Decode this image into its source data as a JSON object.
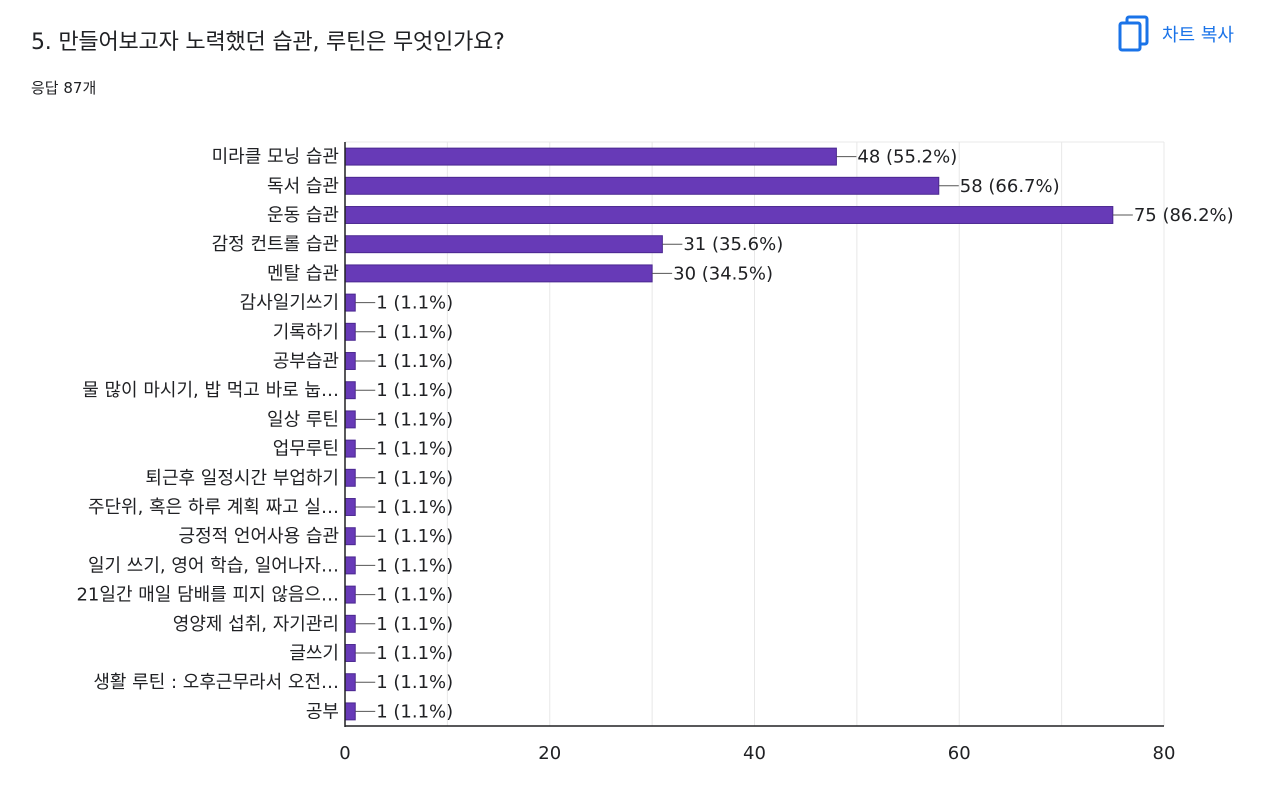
{
  "header": {
    "question_title": "5. 만들어보고자 노력했던 습관, 루틴은 무엇인가요?",
    "response_count": "응답 87개",
    "copy_chart_label": "차트 복사",
    "copy_icon": "copy-icon"
  },
  "colors": {
    "bar": "#673ab7",
    "bar_stroke": "#4a2790",
    "axis": "#202124",
    "grid": "#e8e8e8",
    "accent": "#1a73e8"
  },
  "chart_data": {
    "type": "bar",
    "orientation": "horizontal",
    "title": "",
    "xlabel": "",
    "ylabel": "",
    "xlim": [
      0,
      80
    ],
    "x_ticks": [
      0,
      20,
      40,
      60,
      80
    ],
    "grid": true,
    "categories": [
      "미라클 모닝 습관",
      "독서 습관",
      "운동 습관",
      "감정 컨트롤 습관",
      "멘탈 습관",
      "감사일기쓰기",
      "기록하기",
      "공부습관",
      "물 많이 마시기, 밥 먹고 바로 눕…",
      "일상 루틴",
      "업무루틴",
      "퇴근후 일정시간 부업하기",
      "주단위, 혹은 하루 계획 짜고 실…",
      "긍정적 언어사용 습관",
      "일기 쓰기, 영어 학습, 일어나자…",
      "21일간 매일 담배를 피지 않음으…",
      "영양제 섭취, 자기관리",
      "글쓰기",
      "생활 루틴 : 오후근무라서 오전…",
      "공부"
    ],
    "values": [
      48,
      58,
      75,
      31,
      30,
      1,
      1,
      1,
      1,
      1,
      1,
      1,
      1,
      1,
      1,
      1,
      1,
      1,
      1,
      1
    ],
    "data_labels": [
      "48 (55.2%)",
      "58 (66.7%)",
      "75 (86.2%)",
      "31 (35.6%)",
      "30 (34.5%)",
      "1 (1.1%)",
      "1 (1.1%)",
      "1 (1.1%)",
      "1 (1.1%)",
      "1 (1.1%)",
      "1 (1.1%)",
      "1 (1.1%)",
      "1 (1.1%)",
      "1 (1.1%)",
      "1 (1.1%)",
      "1 (1.1%)",
      "1 (1.1%)",
      "1 (1.1%)",
      "1 (1.1%)",
      "1 (1.1%)"
    ]
  }
}
